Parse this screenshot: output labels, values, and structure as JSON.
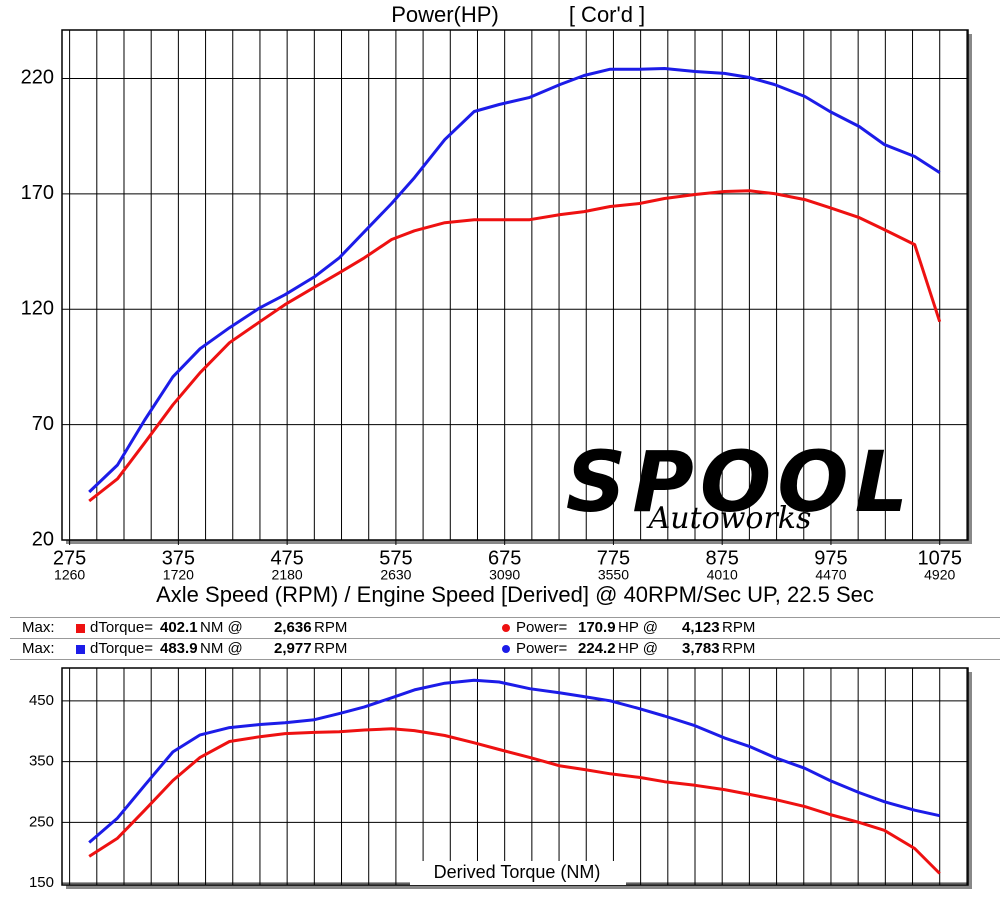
{
  "chart_data": [
    {
      "type": "line",
      "title": "Power(HP)",
      "subtitle": "[ Cor'd ]",
      "x_label": "Axle Speed (RPM) / Engine Speed [Derived] @ 40RPM/Sec UP, 22.5 Sec",
      "logo": "SPOOL",
      "logo_subtext": "Autoworks",
      "x": [
        293,
        319,
        344,
        370,
        395,
        422,
        450,
        473,
        500,
        523,
        546,
        571,
        592,
        620,
        647,
        670,
        698,
        726,
        748,
        772,
        799,
        822,
        850,
        877,
        900,
        923,
        951,
        974,
        1001,
        1024,
        1052,
        1075
      ],
      "series": [
        {
          "color": "#1c1ce8",
          "values": [
            40.8,
            52.5,
            72,
            90.7,
            102.9,
            112,
            120.6,
            126.3,
            134,
            142.3,
            153.6,
            165.8,
            177,
            193.5,
            205.7,
            208.7,
            211.8,
            217.4,
            221.3,
            224,
            224,
            224.3,
            223,
            222.2,
            220.4,
            217.4,
            212.2,
            205.7,
            199.2,
            191.4,
            186.2,
            179.2
          ]
        },
        {
          "color": "#ee1111",
          "values": [
            36.9,
            46.5,
            62.1,
            78.6,
            92.5,
            105.5,
            114.6,
            122,
            129.5,
            135.8,
            142.3,
            150.2,
            154,
            157.5,
            158.8,
            158.8,
            158.8,
            161,
            162.3,
            164.5,
            165.8,
            168,
            169.7,
            171,
            171.3,
            170.1,
            167.5,
            164,
            159.7,
            154.5,
            148,
            114.6
          ]
        }
      ],
      "xlim": [
        268,
        1101
      ],
      "ylim": [
        20,
        241
      ],
      "xticks": [
        275,
        375,
        475,
        575,
        675,
        775,
        875,
        975,
        1075
      ],
      "xticks_engine": [
        1260,
        1720,
        2180,
        2630,
        3090,
        3550,
        4010,
        4470,
        4920
      ],
      "yticks": [
        20,
        70,
        120,
        170,
        220
      ],
      "grid": true
    },
    {
      "type": "line",
      "title": "Derived Torque (NM)",
      "x": [
        293,
        319,
        344,
        370,
        395,
        422,
        450,
        473,
        500,
        523,
        546,
        571,
        592,
        620,
        647,
        670,
        698,
        726,
        748,
        772,
        799,
        822,
        850,
        877,
        900,
        923,
        951,
        974,
        1001,
        1024,
        1052,
        1075
      ],
      "series": [
        {
          "color": "#1c1ce8",
          "values": [
            217,
            257,
            311,
            366,
            394,
            406,
            411,
            414,
            419,
            429,
            440,
            455,
            468,
            479,
            484,
            481,
            470,
            463,
            457,
            450,
            437,
            425,
            409,
            389,
            375,
            357,
            339,
            319,
            299,
            284,
            270,
            261
          ]
        },
        {
          "color": "#ee1111",
          "values": [
            194,
            224,
            270,
            319,
            357,
            383,
            391,
            396,
            398,
            399,
            402,
            404,
            401,
            393,
            381,
            370,
            357,
            343,
            337,
            330,
            324,
            317,
            311,
            304,
            296,
            288,
            276,
            263,
            250,
            237,
            207,
            166
          ]
        }
      ],
      "xlim": [
        268,
        1101
      ],
      "ylim": [
        147,
        504
      ],
      "yticks": [
        150,
        250,
        350,
        450
      ],
      "grid": true
    }
  ],
  "max_table": {
    "rows": [
      {
        "label": "Max:",
        "color": "#ee1111",
        "torque_label": "dTorque=",
        "torque": "402.1",
        "torque_unit": "NM @",
        "torque_rpm": "2,636",
        "torque_rpm_unit": "RPM",
        "power_label": "Power=",
        "power": "170.9",
        "power_unit": "HP @",
        "power_rpm": "4,123",
        "power_rpm_unit": "RPM"
      },
      {
        "label": "Max:",
        "color": "#1c1ce8",
        "torque_label": "dTorque=",
        "torque": "483.9",
        "torque_unit": "NM @",
        "torque_rpm": "2,977",
        "torque_rpm_unit": "RPM",
        "power_label": "Power=",
        "power": "224.2",
        "power_unit": "HP @",
        "power_rpm": "3,783",
        "power_rpm_unit": "RPM"
      }
    ]
  }
}
